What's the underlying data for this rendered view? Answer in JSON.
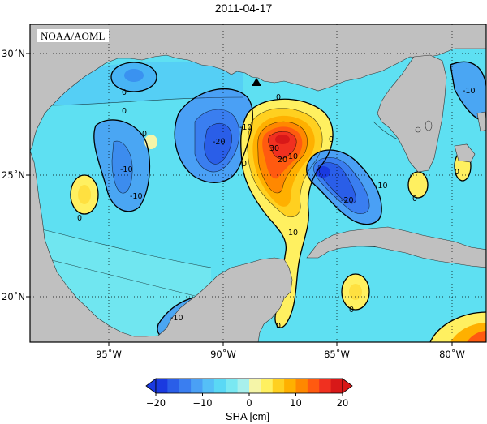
{
  "title": "2011-04-17",
  "credit": "NOAA/AOML",
  "map": {
    "lon_range": [
      -98,
      -78
    ],
    "lat_range": [
      18,
      31
    ],
    "x_ticks": [
      {
        "value": -95,
        "label": "95˚W"
      },
      {
        "value": -90,
        "label": "90˚W"
      },
      {
        "value": -85,
        "label": "85˚W"
      },
      {
        "value": -80,
        "label": "80˚W"
      }
    ],
    "y_ticks": [
      {
        "value": 30,
        "label": "30˚N"
      },
      {
        "value": 25,
        "label": "25˚N"
      },
      {
        "value": 20,
        "label": "20˚N"
      }
    ],
    "grid": "dotted",
    "land_color": "#c0c0c0",
    "ocean_color": "#5ee0f2",
    "marker": {
      "type": "triangle",
      "lon": -88.5,
      "lat": 28.3
    }
  },
  "contour_labels": [
    "0",
    "-10",
    "-20",
    "0",
    "-10",
    "-10",
    "10",
    "20",
    "30",
    "0",
    "0",
    "0",
    "0",
    "-20",
    "-10",
    "0",
    "10",
    "0",
    "0",
    "-10",
    "-10",
    "0",
    "0"
  ],
  "colorbar": {
    "min": -20,
    "max": 20,
    "ticks": [
      "−20",
      "−10",
      "0",
      "10",
      "20"
    ],
    "colors": [
      "#1a3ae0",
      "#2a5ee8",
      "#3a7ef0",
      "#4aa0f5",
      "#55bff7",
      "#5ad8f5",
      "#7ae8f2",
      "#a8f0ec",
      "#f5f5a8",
      "#fff060",
      "#ffd020",
      "#ffb000",
      "#ff8800",
      "#ff5a10",
      "#f03020",
      "#d81818"
    ],
    "label": "SHA [cm]"
  }
}
